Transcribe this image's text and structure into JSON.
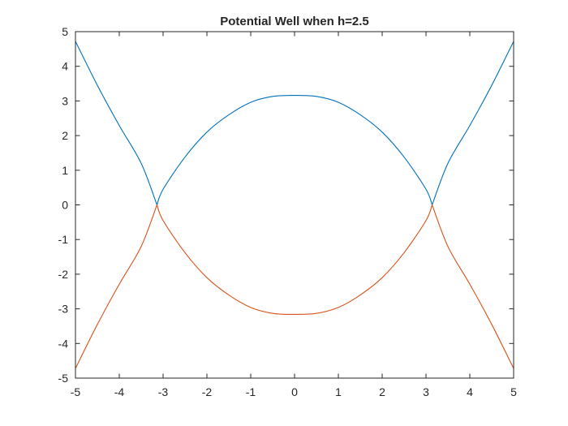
{
  "chart_data": {
    "type": "line",
    "title": "Potential Well when h=2.5",
    "xlabel": "",
    "ylabel": "",
    "xlim": [
      -5,
      5
    ],
    "ylim": [
      -5,
      5
    ],
    "xticks": [
      -5,
      -4,
      -3,
      -2,
      -1,
      0,
      1,
      2,
      3,
      4,
      5
    ],
    "yticks": [
      -5,
      -4,
      -3,
      -2,
      -1,
      0,
      1,
      2,
      3,
      4,
      5
    ],
    "xtick_labels": [
      "-5",
      "-4",
      "-3",
      "-2",
      "-1",
      "0",
      "1",
      "2",
      "3",
      "4",
      "5"
    ],
    "ytick_labels": [
      "-5",
      "-4",
      "-3",
      "-2",
      "-1",
      "0",
      "1",
      "2",
      "3",
      "4",
      "5"
    ],
    "grid": false,
    "box": true,
    "legend": "none",
    "series": [
      {
        "color": "#0072BD",
        "x": [
          -5,
          -4.5,
          -4,
          -3.5,
          -3.14,
          -3,
          -2.5,
          -2,
          -1.5,
          -1,
          -0.5,
          0,
          0.5,
          1,
          1.5,
          2,
          2.5,
          3,
          3.14,
          3.5,
          4,
          4.5,
          5
        ],
        "y": [
          4.72,
          3.45,
          2.29,
          1.2,
          0.0,
          0.45,
          1.38,
          2.1,
          2.6,
          2.96,
          3.13,
          3.16,
          3.13,
          2.96,
          2.6,
          2.1,
          1.38,
          0.45,
          0.0,
          1.2,
          2.29,
          3.45,
          4.72
        ]
      },
      {
        "color": "#D95319",
        "x": [
          -5,
          -4.5,
          -4,
          -3.5,
          -3.14,
          -3,
          -2.5,
          -2,
          -1.5,
          -1,
          -0.5,
          0,
          0.5,
          1,
          1.5,
          2,
          2.5,
          3,
          3.14,
          3.5,
          4,
          4.5,
          5
        ],
        "y": [
          -4.72,
          -3.45,
          -2.29,
          -1.2,
          0.0,
          -0.45,
          -1.38,
          -2.1,
          -2.6,
          -2.96,
          -3.13,
          -3.16,
          -3.13,
          -2.96,
          -2.6,
          -2.1,
          -1.38,
          -0.45,
          0.0,
          -1.2,
          -2.29,
          -3.45,
          -4.72
        ]
      }
    ]
  }
}
